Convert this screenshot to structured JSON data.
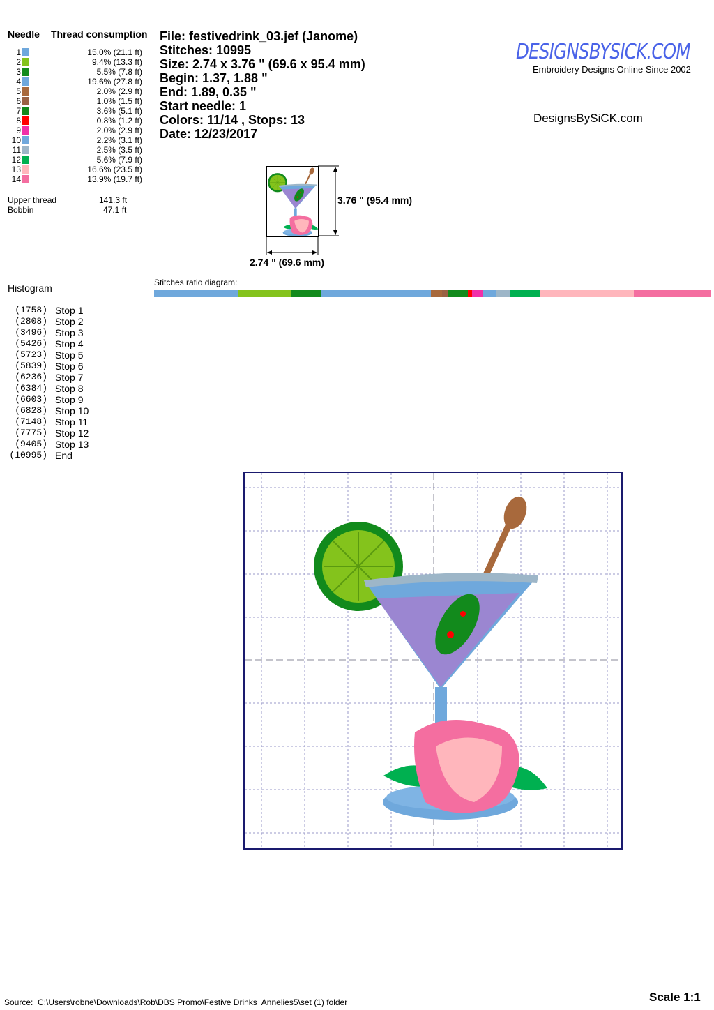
{
  "needles": {
    "header_needle": "Needle",
    "header_consumption": "Thread consumption",
    "items": [
      {
        "n": "1",
        "color": "#6fa8dc",
        "value": "15.0% (21.1 ft)",
        "pct": 15.0
      },
      {
        "n": "2",
        "color": "#84c31c",
        "value": "9.4% (13.3 ft)",
        "pct": 9.4
      },
      {
        "n": "3",
        "color": "#128a1c",
        "value": "5.5% (7.8 ft)",
        "pct": 5.5
      },
      {
        "n": "4",
        "color": "#6fa8dc",
        "value": "19.6% (27.8 ft)",
        "pct": 19.6
      },
      {
        "n": "5",
        "color": "#a8693c",
        "value": "2.0% (2.9 ft)",
        "pct": 2.0
      },
      {
        "n": "6",
        "color": "#9a6244",
        "value": "1.0% (1.5 ft)",
        "pct": 1.0
      },
      {
        "n": "7",
        "color": "#128a1c",
        "value": "3.6% (5.1 ft)",
        "pct": 3.6
      },
      {
        "n": "8",
        "color": "#ff0000",
        "value": "0.8% (1.2 ft)",
        "pct": 0.8
      },
      {
        "n": "9",
        "color": "#f02fa8",
        "value": "2.0% (2.9 ft)",
        "pct": 2.0
      },
      {
        "n": "10",
        "color": "#6fa8dc",
        "value": "2.2% (3.1 ft)",
        "pct": 2.2
      },
      {
        "n": "11",
        "color": "#9db6c8",
        "value": "2.5% (3.5 ft)",
        "pct": 2.5
      },
      {
        "n": "12",
        "color": "#00b050",
        "value": "5.6% (7.9 ft)",
        "pct": 5.6
      },
      {
        "n": "13",
        "color": "#ffb6bc",
        "value": "16.6% (23.5 ft)",
        "pct": 16.6
      },
      {
        "n": "14",
        "color": "#f46ea0",
        "value": "13.9% (19.7 ft)",
        "pct": 13.9
      }
    ],
    "upper_thread_label": "Upper thread",
    "upper_thread_value": "141.3 ft",
    "bobbin_label": "Bobbin",
    "bobbin_value": "47.1 ft"
  },
  "info": {
    "file": "File: festivedrink_03.jef  (Janome)",
    "stitches": "Stitches: 10995",
    "size": "Size: 2.74 x 3.76 \" (69.6 x 95.4 mm)",
    "begin": "Begin: 1.37, 1.88 \"",
    "end": "End: 1.89, 0.35 \"",
    "start_needle": "Start needle: 1",
    "colors": "Colors: 11/14 , Stops: 13",
    "date": "Date: 12/23/2017"
  },
  "logo": {
    "text": "DesignsBySiCK.com",
    "tagline": "Embroidery Designs Online Since 2002",
    "color": "#4a63e8"
  },
  "site_text": "DesignsBySiCK.com",
  "thumbnail": {
    "height_label": "3.76 \" (95.4 mm)",
    "width_label": "2.74 \" (69.6 mm)"
  },
  "ratio_label": "Stitches ratio diagram:",
  "histogram": {
    "title": "Histogram",
    "stops": [
      {
        "count": "(1758)",
        "label": "Stop 1"
      },
      {
        "count": "(2808)",
        "label": "Stop 2"
      },
      {
        "count": "(3496)",
        "label": "Stop 3"
      },
      {
        "count": "(5426)",
        "label": "Stop 4"
      },
      {
        "count": "(5723)",
        "label": "Stop 5"
      },
      {
        "count": "(5839)",
        "label": "Stop 6"
      },
      {
        "count": "(6236)",
        "label": "Stop 7"
      },
      {
        "count": "(6384)",
        "label": "Stop 8"
      },
      {
        "count": "(6603)",
        "label": "Stop 9"
      },
      {
        "count": "(6828)",
        "label": "Stop 10"
      },
      {
        "count": "(7148)",
        "label": "Stop 11"
      },
      {
        "count": "(7775)",
        "label": "Stop 12"
      },
      {
        "count": "(9405)",
        "label": "Stop 13"
      },
      {
        "count": "(10995)",
        "label": "End"
      }
    ]
  },
  "footer": {
    "source": "Source:  C:\\Users\\robne\\Downloads\\Rob\\DBS Promo\\Festive Drinks  Annelies5\\set (1) folder",
    "scale": "Scale 1:1"
  }
}
